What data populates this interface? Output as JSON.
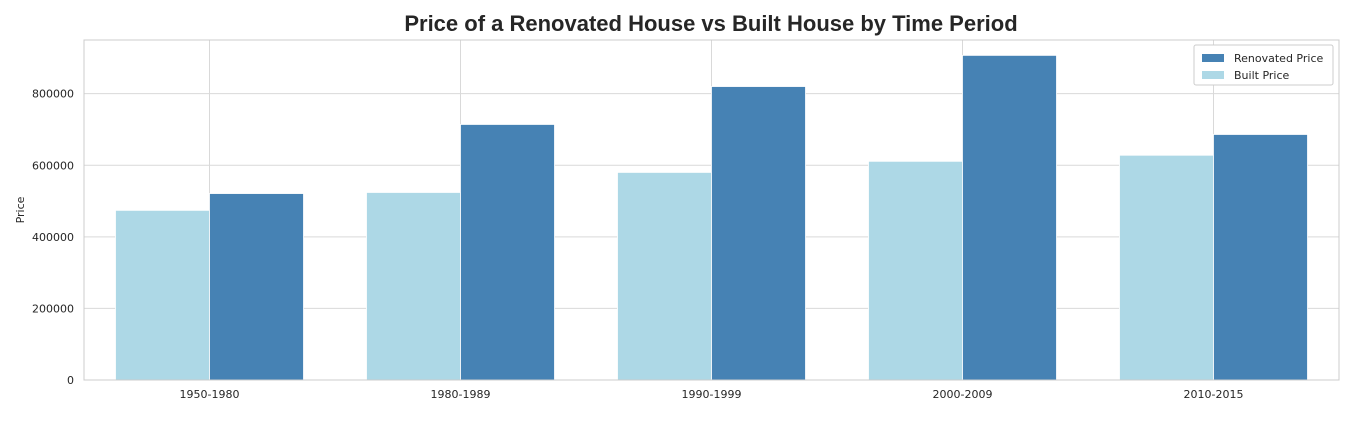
{
  "chart_data": {
    "type": "bar",
    "title": "Price of a Renovated House vs Built House by Time Period",
    "xlabel": "",
    "ylabel": "Price",
    "categories": [
      "1950-1980",
      "1980-1989",
      "1990-1999",
      "2000-2009",
      "2010-2015"
    ],
    "series": [
      {
        "name": "Built Price",
        "color": "#add8e6",
        "values": [
          474000,
          524000,
          580000,
          611000,
          628000
        ]
      },
      {
        "name": "Renovated Price",
        "color": "#4682b4",
        "values": [
          521000,
          714000,
          820000,
          907000,
          686000
        ]
      }
    ],
    "ylim": [
      0,
      950000
    ],
    "yticks": [
      0,
      200000,
      400000,
      600000,
      800000
    ],
    "ytick_labels": [
      "0",
      "200000",
      "400000",
      "600000",
      "800000"
    ],
    "grid": true,
    "legend": {
      "position": "top-right",
      "entries": [
        {
          "label": "Renovated Price",
          "color": "#4682b4"
        },
        {
          "label": "Built Price",
          "color": "#add8e6"
        }
      ]
    }
  }
}
